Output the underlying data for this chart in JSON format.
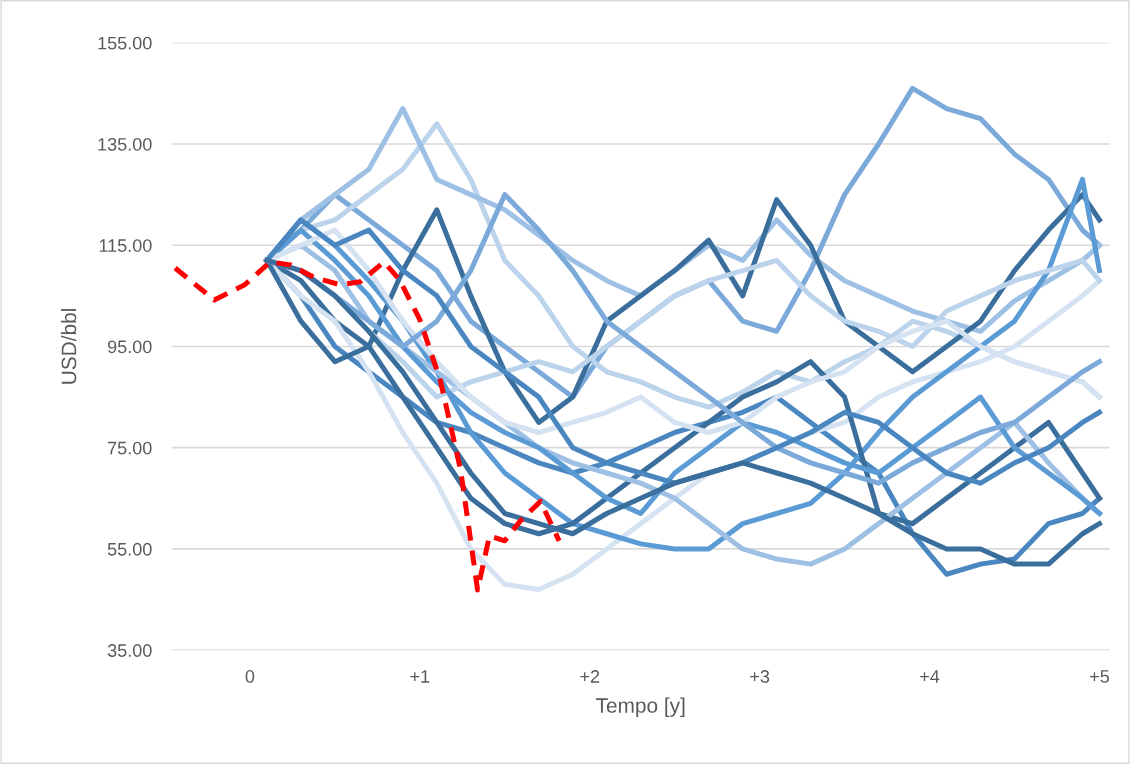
{
  "chart_data": {
    "type": "line",
    "xlabel": "Tempo [y]",
    "ylabel": "USD/bbl",
    "x": [
      0.1,
      0.3,
      0.5,
      0.7,
      0.9,
      1.1,
      1.3,
      1.5,
      1.7,
      1.9,
      2.1,
      2.3,
      2.5,
      2.7,
      2.9,
      3.1,
      3.3,
      3.5,
      3.7,
      3.9,
      4.1,
      4.3,
      4.5,
      4.7,
      4.9,
      5.0
    ],
    "xlim": [
      -0.46,
      5.06
    ],
    "ylim": [
      35,
      155
    ],
    "xticks": [
      0,
      {
        "value": 1,
        "label": "+1"
      },
      {
        "value": 2,
        "label": "+2"
      },
      {
        "value": 3,
        "label": "+3"
      },
      {
        "value": 4,
        "label": "+4"
      },
      {
        "value": 5,
        "label": "+5"
      }
    ],
    "yticks": [
      {
        "value": 35,
        "label": "35.00"
      },
      {
        "value": 55,
        "label": "55.00"
      },
      {
        "value": 75,
        "label": "75.00"
      },
      {
        "value": 95,
        "label": "95.00"
      },
      {
        "value": 115,
        "label": "115.00"
      },
      {
        "value": 135,
        "label": "135.00"
      },
      {
        "value": 155,
        "label": "155.00"
      }
    ],
    "grid": "y",
    "legend": false,
    "marker": "none",
    "series": [
      {
        "color": "#7aa9da",
        "values": [
          112,
          118,
          125,
          120,
          115,
          110,
          100,
          95,
          90,
          85,
          95,
          100,
          105,
          108,
          100,
          98,
          110,
          125,
          135,
          146,
          142,
          140,
          133,
          128,
          118,
          115
        ]
      },
      {
        "color": "#4a87c0",
        "values": [
          112,
          105,
          95,
          90,
          85,
          80,
          78,
          75,
          72,
          70,
          72,
          75,
          78,
          80,
          82,
          85,
          80,
          75,
          70,
          58,
          50,
          52,
          53,
          60,
          62,
          65
        ]
      },
      {
        "color": "#bcd3ec",
        "values": [
          112,
          118,
          120,
          125,
          130,
          139,
          128,
          112,
          105,
          95,
          90,
          88,
          85,
          83,
          86,
          90,
          88,
          92,
          95,
          100,
          98,
          95,
          92,
          90,
          88,
          85
        ]
      },
      {
        "color": "#9dc0e4",
        "values": [
          112,
          120,
          125,
          130,
          142,
          128,
          125,
          122,
          117,
          112,
          108,
          105,
          110,
          115,
          112,
          120,
          113,
          108,
          105,
          102,
          100,
          98,
          104,
          108,
          112,
          115
        ]
      },
      {
        "color": "#3a6e9c",
        "values": [
          112,
          108,
          100,
          95,
          110,
          122,
          105,
          90,
          80,
          85,
          100,
          105,
          110,
          116,
          105,
          124,
          115,
          100,
          95,
          90,
          95,
          100,
          110,
          118,
          125,
          120
        ]
      },
      {
        "color": "#d4e2f2",
        "values": [
          112,
          105,
          100,
          90,
          78,
          68,
          55,
          48,
          47,
          50,
          55,
          60,
          65,
          70,
          72,
          75,
          78,
          80,
          85,
          88,
          90,
          92,
          95,
          100,
          105,
          108
        ]
      },
      {
        "color": "#5b9bd5",
        "values": [
          112,
          120,
          115,
          108,
          100,
          90,
          78,
          70,
          65,
          60,
          58,
          56,
          55,
          55,
          60,
          62,
          64,
          70,
          78,
          85,
          90,
          95,
          100,
          110,
          128,
          110
        ]
      },
      {
        "color": "#3a6e9c",
        "values": [
          112,
          100,
          92,
          95,
          85,
          75,
          65,
          60,
          58,
          60,
          65,
          70,
          75,
          80,
          85,
          88,
          92,
          85,
          62,
          60,
          65,
          70,
          75,
          80,
          70,
          65
        ]
      },
      {
        "color": "#9dc0e4",
        "values": [
          112,
          115,
          110,
          100,
          95,
          90,
          85,
          80,
          75,
          72,
          70,
          68,
          65,
          60,
          55,
          53,
          52,
          55,
          60,
          65,
          70,
          75,
          80,
          72,
          65,
          62
        ]
      },
      {
        "color": "#bcd3ec",
        "values": [
          112,
          110,
          105,
          98,
          92,
          85,
          88,
          90,
          92,
          90,
          95,
          100,
          105,
          108,
          110,
          112,
          105,
          100,
          98,
          95,
          102,
          105,
          108,
          110,
          112,
          108
        ]
      },
      {
        "color": "#5b9bd5",
        "values": [
          112,
          118,
          112,
          105,
          95,
          88,
          82,
          78,
          75,
          70,
          65,
          62,
          70,
          75,
          80,
          78,
          75,
          72,
          70,
          75,
          80,
          85,
          75,
          70,
          65,
          62
        ]
      },
      {
        "color": "#d4e2f2",
        "values": [
          112,
          115,
          118,
          110,
          100,
          92,
          85,
          80,
          78,
          80,
          82,
          85,
          80,
          78,
          80,
          85,
          88,
          90,
          95,
          98,
          100,
          95,
          92,
          90,
          88,
          85
        ]
      },
      {
        "color": "#7aa9da",
        "values": [
          112,
          110,
          105,
          100,
          95,
          100,
          110,
          125,
          118,
          110,
          100,
          95,
          90,
          85,
          80,
          75,
          72,
          70,
          68,
          72,
          75,
          78,
          80,
          85,
          90,
          92
        ]
      },
      {
        "color": "#4a87c0",
        "values": [
          112,
          120,
          115,
          118,
          110,
          105,
          95,
          90,
          85,
          75,
          72,
          70,
          68,
          70,
          72,
          75,
          78,
          82,
          80,
          75,
          70,
          68,
          72,
          75,
          80,
          82
        ]
      },
      {
        "color": "#3a6e9c",
        "values": [
          112,
          110,
          105,
          98,
          90,
          80,
          70,
          62,
          60,
          58,
          62,
          65,
          68,
          70,
          72,
          70,
          68,
          65,
          62,
          58,
          55,
          55,
          52,
          52,
          58,
          60
        ]
      },
      {
        "color": "#ff0000",
        "line_style": "dashed",
        "x": [
          -0.44,
          -0.21,
          -0.03,
          0.12,
          0.24,
          0.38,
          0.53,
          0.65,
          0.79,
          0.88,
          1.0,
          1.12,
          1.24,
          1.29,
          1.34,
          1.41,
          1.5,
          1.59,
          1.71,
          1.82
        ],
        "values": [
          110.5,
          104.2,
          107.2,
          111.7,
          111.1,
          108.6,
          107.2,
          107.8,
          111.7,
          108.2,
          100.3,
          88.4,
          70.6,
          58.8,
          46.9,
          57.6,
          56.6,
          60.5,
          64.4,
          56.6
        ]
      }
    ]
  }
}
